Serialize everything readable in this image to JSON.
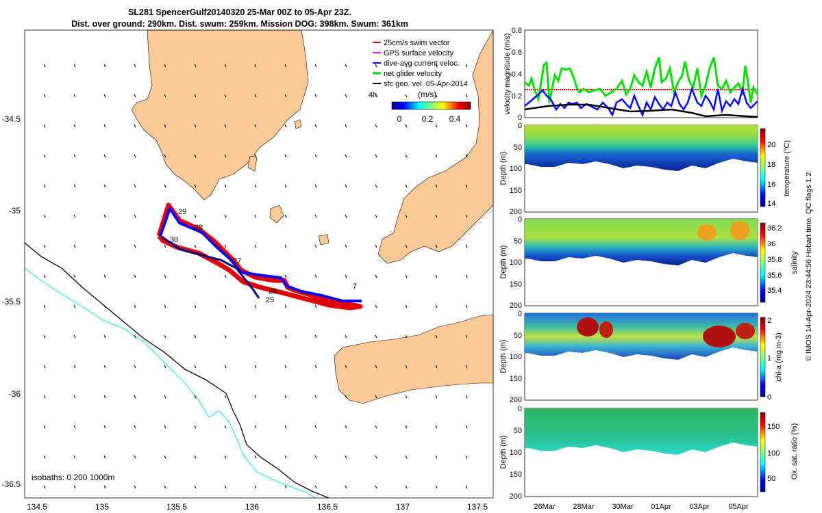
{
  "title": {
    "line1": "SL281 SpencerGulf20140320 25-Mar 00Z to 05-Apr 23Z.",
    "line2": "Dist. over ground: 290km. Dist. swum: 259km. Mission DOG: 398km. Swum: 361km"
  },
  "map": {
    "lon_ticks": [
      "134.5",
      "135",
      "135.5",
      "136",
      "136.5",
      "137",
      "137.5"
    ],
    "lat_ticks": [
      "-34.5",
      "-35",
      "-35.5",
      "-36",
      "-36.5"
    ],
    "legend": [
      {
        "label": "25cm/s swim vector",
        "color": "#e00000"
      },
      {
        "label": "GPS surface velocity",
        "color": "#ff00ff"
      },
      {
        "label": "dive-avg current veloc.",
        "color": "#0000ff"
      },
      {
        "label": "net glider velocity",
        "color": "#00dd00"
      },
      {
        "label": "sfc geo. vel. 05-Apr-2014",
        "color": "#000000"
      }
    ],
    "colorbar": {
      "unit": "(m/s)",
      "ticks": [
        "0",
        "0.2",
        "0.4"
      ],
      "prefix": "4h"
    },
    "day_labels": [
      "29",
      "28",
      "30",
      "27",
      "26",
      "25",
      "7"
    ],
    "isobaths": "isobaths: 0   200  1000m",
    "land_color": "#fdc996",
    "isobath_colors": {
      "0": "#000000",
      "1000": "#3fe6e6"
    }
  },
  "timeseries": {
    "ylabel": "velocity magnitude (m/s)",
    "yticks": [
      "0.8",
      "0.6",
      "0.4",
      "0.2",
      "0"
    ]
  },
  "panels": [
    {
      "ylabel": "Depth (m)",
      "cbar_label": "temperature (°C)",
      "cbar_ticks": [
        "20",
        "18",
        "16",
        "14"
      ]
    },
    {
      "ylabel": "Depth (m)",
      "cbar_label": "salinity",
      "cbar_ticks": [
        "36.2",
        "36",
        "35.8",
        "35.6",
        "35.4"
      ]
    },
    {
      "ylabel": "Depth (m)",
      "cbar_label": "chl-a (mg m-3)",
      "cbar_ticks": [
        "2",
        "1",
        "0"
      ]
    },
    {
      "ylabel": "Depth (m)",
      "cbar_label": "Ox. sat. ratio (%)",
      "cbar_ticks": [
        "150",
        "100",
        "50"
      ]
    }
  ],
  "depth_ticks": [
    "0",
    "50",
    "100",
    "150",
    "200"
  ],
  "date_ticks": [
    "26Mar",
    "28Mar",
    "30Mar",
    "01Apr",
    "03Apr",
    "05Apr"
  ],
  "side_note": "© IMOS 14-Apr-2024 23:44:56 Hobart time. QC flags 1  2"
}
